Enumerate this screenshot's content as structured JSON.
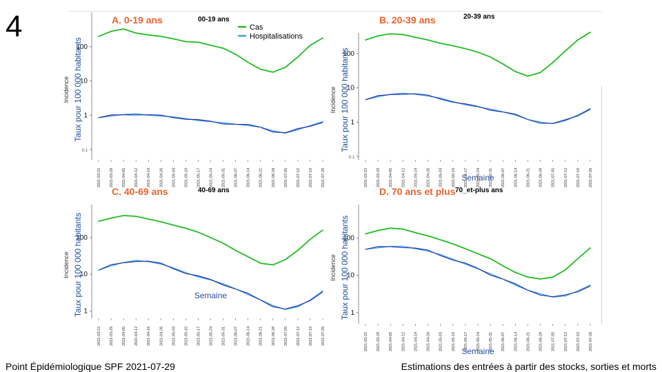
{
  "slide_number": "4",
  "footer_left": "Point Épidémiologique SPF 2021-07-29",
  "footer_right": "Estimations des entrées à partir des stocks, sorties et morts",
  "legend": {
    "cases_label": "Cas",
    "hosp_label": "Hospitalisations",
    "cases_color": "#22bb22",
    "hosp_color": "#3aa0e8",
    "hosp_alt_color": "#1f2aa0"
  },
  "y_axis_label": "Taux pour 100 000 habitants",
  "y_axis_label_2": "Incidence",
  "x_axis_label": "Semaine",
  "x_ticks": [
    "2021-03-22",
    "2021-03-29",
    "2021-04-05",
    "2021-04-12",
    "2021-04-19",
    "2021-04-26",
    "2021-05-03",
    "2021-05-10",
    "2021-05-17",
    "2021-05-24",
    "2021-05-31",
    "2021-06-07",
    "2021-06-14",
    "2021-06-21",
    "2021-06-28",
    "2021-07-05",
    "2021-07-12",
    "2021-07-19",
    "2021-07-26"
  ],
  "chart_data": [
    {
      "type": "line",
      "title": "A. 0-19 ans",
      "subtitle": "00-19 ans",
      "y_scale": "log",
      "y_ticks": [
        "100",
        "10",
        "1",
        "0.1"
      ],
      "x": [
        "2021-03-22",
        "2021-03-29",
        "2021-04-05",
        "2021-04-12",
        "2021-04-19",
        "2021-04-26",
        "2021-05-03",
        "2021-05-10",
        "2021-05-17",
        "2021-05-24",
        "2021-05-31",
        "2021-06-07",
        "2021-06-14",
        "2021-06-21",
        "2021-06-28",
        "2021-07-05",
        "2021-07-12",
        "2021-07-19",
        "2021-07-26"
      ],
      "series": [
        {
          "name": "Cas",
          "values": [
            200,
            280,
            330,
            250,
            220,
            200,
            170,
            140,
            135,
            110,
            90,
            60,
            35,
            22,
            18,
            25,
            50,
            110,
            180
          ]
        },
        {
          "name": "Hospitalisations",
          "values": [
            0.85,
            0.95,
            1.05,
            1.1,
            1.0,
            0.95,
            0.9,
            0.8,
            0.7,
            0.65,
            0.6,
            0.55,
            0.5,
            0.45,
            0.35,
            0.3,
            0.38,
            0.5,
            0.65
          ]
        }
      ]
    },
    {
      "type": "line",
      "title": "B. 20-39 ans",
      "subtitle": "20-39 ans",
      "y_scale": "log",
      "y_ticks": [
        "100",
        "10",
        "1",
        "0.1"
      ],
      "x": [
        "2021-03-22",
        "2021-03-29",
        "2021-04-05",
        "2021-04-12",
        "2021-04-19",
        "2021-04-26",
        "2021-05-03",
        "2021-05-10",
        "2021-05-17",
        "2021-05-24",
        "2021-05-31",
        "2021-06-07",
        "2021-06-14",
        "2021-06-21",
        "2021-06-28",
        "2021-07-05",
        "2021-07-12",
        "2021-07-19",
        "2021-07-26"
      ],
      "series": [
        {
          "name": "Cas",
          "values": [
            250,
            330,
            380,
            360,
            300,
            250,
            200,
            170,
            140,
            110,
            80,
            50,
            30,
            22,
            28,
            55,
            120,
            250,
            420
          ]
        },
        {
          "name": "Hospitalisations",
          "values": [
            4.5,
            5.5,
            6.5,
            7.0,
            6.5,
            5.8,
            5.0,
            4.0,
            3.2,
            2.8,
            2.4,
            2.0,
            1.6,
            1.2,
            1.0,
            0.9,
            1.1,
            1.6,
            2.5
          ]
        }
      ]
    },
    {
      "type": "line",
      "title": "C. 40-69 ans",
      "subtitle": "40-69 ans",
      "y_scale": "log",
      "y_ticks": [
        "100",
        "10",
        "1"
      ],
      "x": [
        "2021-03-22",
        "2021-03-29",
        "2021-04-05",
        "2021-04-12",
        "2021-04-19",
        "2021-04-26",
        "2021-05-03",
        "2021-05-10",
        "2021-05-17",
        "2021-05-24",
        "2021-05-31",
        "2021-06-07",
        "2021-06-14",
        "2021-06-21",
        "2021-06-28",
        "2021-07-05",
        "2021-07-12",
        "2021-07-19",
        "2021-07-26"
      ],
      "series": [
        {
          "name": "Cas",
          "values": [
            280,
            340,
            400,
            380,
            320,
            270,
            220,
            180,
            140,
            100,
            70,
            45,
            30,
            20,
            18,
            25,
            45,
            90,
            160
          ]
        },
        {
          "name": "Hospitalisations",
          "values": [
            13,
            17,
            21,
            24,
            22,
            19,
            15,
            11,
            8.5,
            7,
            5.5,
            4,
            2.8,
            2.0,
            1.4,
            1.1,
            1.3,
            2.0,
            3.5
          ]
        }
      ]
    },
    {
      "type": "line",
      "title": "D. 70 ans et plus",
      "subtitle": "70_et-plus ans",
      "y_scale": "log",
      "y_ticks": [
        "100",
        "10",
        "1"
      ],
      "x": [
        "2021-03-22",
        "2021-03-29",
        "2021-04-05",
        "2021-04-12",
        "2021-04-19",
        "2021-04-26",
        "2021-05-03",
        "2021-05-10",
        "2021-05-17",
        "2021-05-24",
        "2021-05-31",
        "2021-06-07",
        "2021-06-14",
        "2021-06-21",
        "2021-06-28",
        "2021-07-05",
        "2021-07-12",
        "2021-07-19",
        "2021-07-26"
      ],
      "series": [
        {
          "name": "Cas",
          "values": [
            130,
            160,
            185,
            175,
            140,
            115,
            90,
            70,
            52,
            38,
            28,
            18,
            12,
            9,
            8,
            9,
            14,
            28,
            55
          ]
        },
        {
          "name": "Hospitalisations",
          "values": [
            50,
            55,
            60,
            60,
            52,
            45,
            36,
            27,
            20,
            15,
            11,
            8,
            5.5,
            4,
            3.2,
            2.6,
            2.8,
            3.8,
            5.5
          ]
        }
      ]
    }
  ]
}
